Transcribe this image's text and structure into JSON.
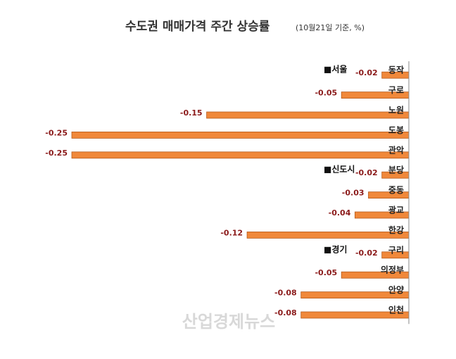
{
  "chart_data": {
    "type": "barh",
    "title": "수도권 매매가격 주간 상승률",
    "subtitle": "(10월21일 기준, %)",
    "categories": [
      "동작",
      "구로",
      "노원",
      "도봉",
      "관악",
      "분당",
      "중동",
      "광교",
      "한강",
      "구리",
      "의정부",
      "안양",
      "인천"
    ],
    "values": [
      -0.02,
      -0.05,
      -0.15,
      -0.25,
      -0.25,
      -0.02,
      -0.03,
      -0.04,
      -0.12,
      -0.02,
      -0.05,
      -0.08,
      -0.08
    ],
    "color": "#f0883a",
    "xlim": [
      -0.25,
      0
    ],
    "annotations": [
      "■서울",
      "■신도시",
      "■경기"
    ],
    "watermark": "산업경제뉴스"
  }
}
